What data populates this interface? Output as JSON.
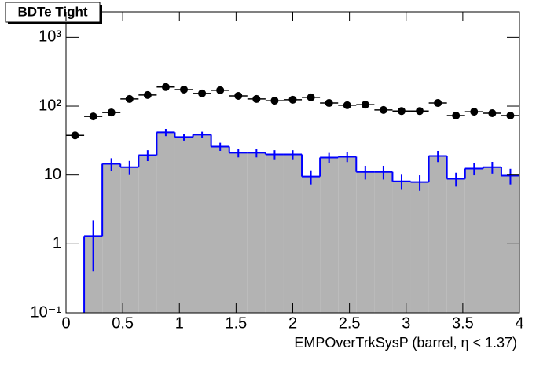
{
  "chart_data": {
    "type": "histogram",
    "title": "BDTe Tight",
    "x_label": "EMPOverTrkSysP (barrel,   η < 1.37)",
    "log_y": true,
    "xlim": [
      0,
      4
    ],
    "ylim": [
      0.1,
      2340
    ],
    "xticks": [
      0,
      0.5,
      1,
      1.5,
      2,
      2.5,
      3,
      3.5,
      4
    ],
    "yticks": [
      {
        "value": 0.1,
        "label": "10⁻¹"
      },
      1,
      10,
      {
        "value": 100,
        "label": "10²"
      },
      {
        "value": 1000,
        "label": "10³"
      }
    ],
    "bins": [
      0,
      0.16,
      0.32,
      0.48,
      0.64,
      0.8,
      0.96,
      1.12,
      1.28,
      1.44,
      1.6,
      1.76,
      1.92,
      2.08,
      2.24,
      2.4,
      2.56,
      2.72,
      2.88,
      3.04,
      3.2,
      3.36,
      3.52,
      3.68,
      3.84,
      4
    ],
    "histogram": {
      "color": "#0000ff",
      "fill": "#b3b3b3",
      "values": [
        0,
        1.3,
        14.5,
        13,
        19.4,
        41.7,
        35.6,
        38.5,
        25.9,
        21,
        21,
        19.9,
        19.9,
        9.5,
        17.9,
        18.4,
        11.1,
        11.1,
        8.1,
        7.9,
        18.9,
        8.8,
        12.4,
        13,
        9.8
      ],
      "errors": [
        0,
        0.9,
        3,
        3,
        3.5,
        5,
        4,
        4,
        3.5,
        3,
        3,
        3,
        3,
        2.2,
        3,
        3,
        2.5,
        2.5,
        2,
        2,
        3.5,
        2,
        2.5,
        2.5,
        2.5
      ]
    },
    "points": {
      "color": "#000000",
      "values": [
        37.6,
        70.9,
        80.9,
        127,
        145,
        189,
        174,
        153,
        170,
        141,
        127,
        120,
        124,
        134,
        111,
        103,
        105,
        88,
        85,
        85,
        111,
        73,
        83,
        79,
        73
      ]
    }
  }
}
